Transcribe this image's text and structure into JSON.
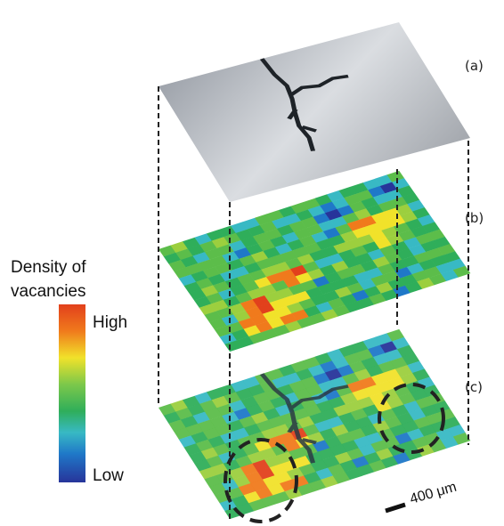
{
  "labels": {
    "a": "(a)",
    "b": "(b)",
    "c": "(c)"
  },
  "legend": {
    "title_line1": "Density of",
    "title_line2": "vacancies",
    "high": "High",
    "low": "Low"
  },
  "scale_bar": "400 μm"
}
